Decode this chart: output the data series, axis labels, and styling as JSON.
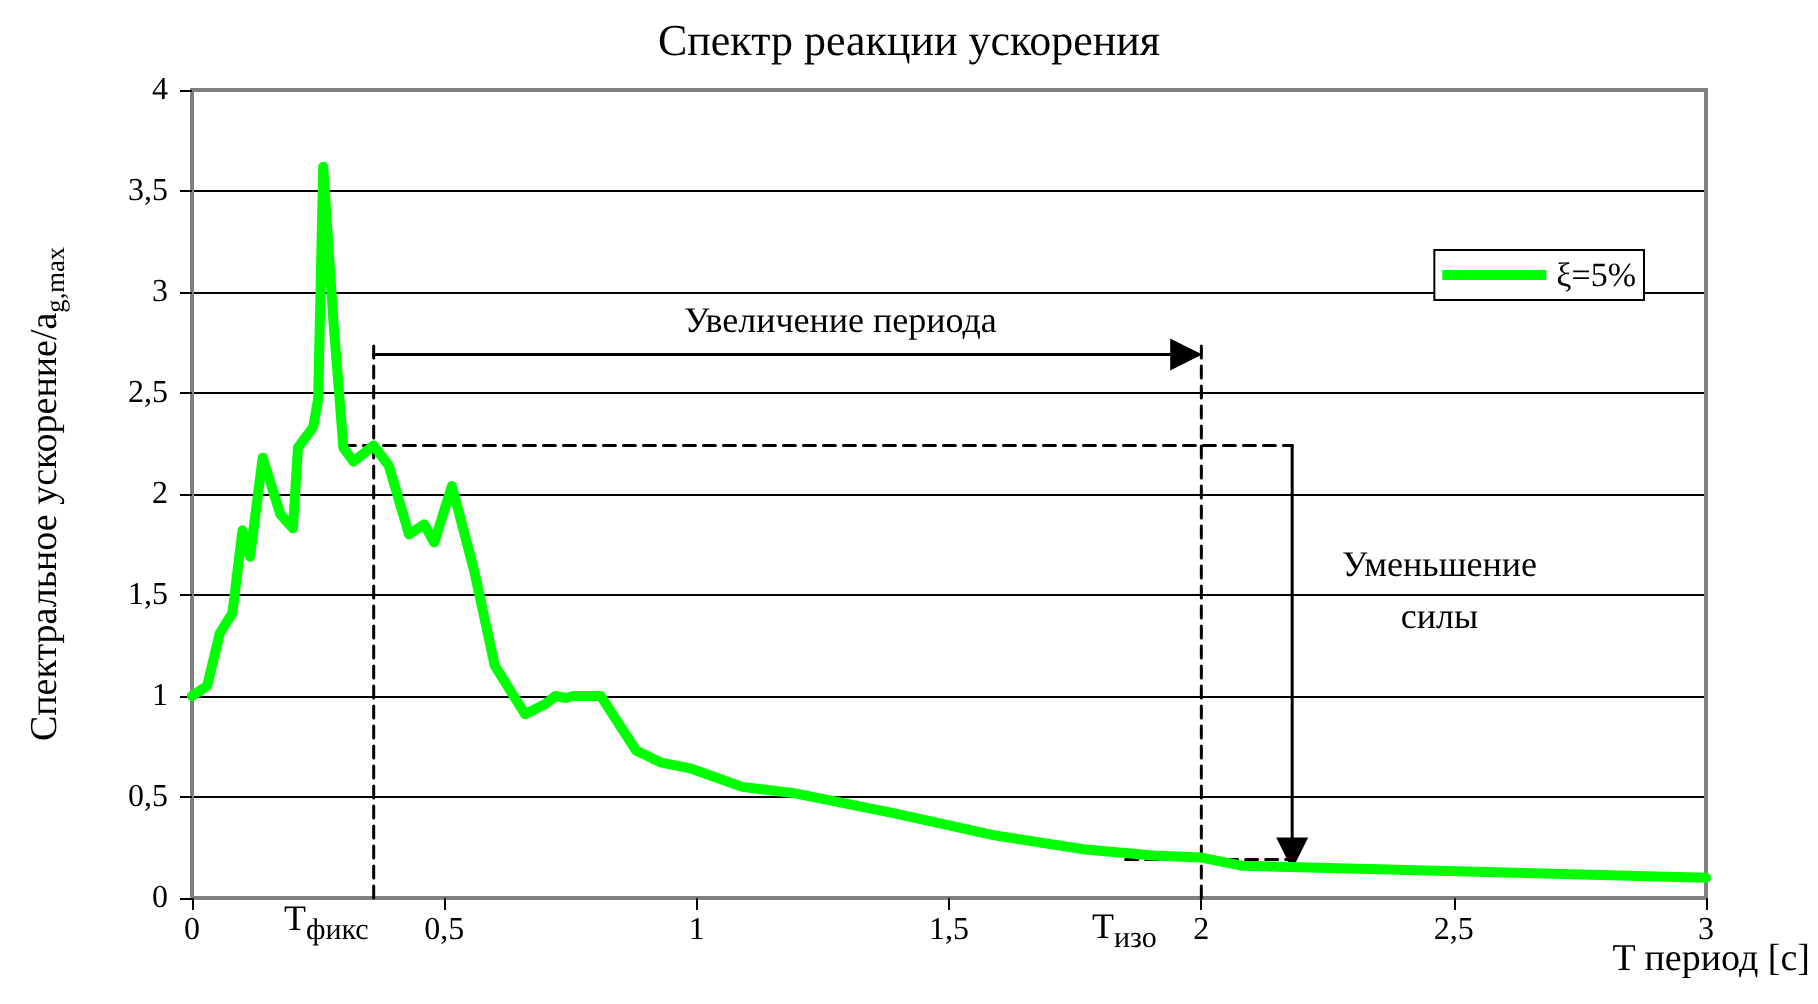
{
  "chart_data": {
    "type": "line",
    "title": "Спектр реакции ускорения",
    "xlabel": "T период [c]",
    "ylabel": "Спектральное ускорение/a$_{g,max}$",
    "series": [
      {
        "name": "ξ=5%",
        "color": "#00ff00",
        "x": [
          0,
          0.03,
          0.055,
          0.08,
          0.1,
          0.115,
          0.14,
          0.175,
          0.2,
          0.21,
          0.24,
          0.25,
          0.26,
          0.28,
          0.3,
          0.32,
          0.36,
          0.39,
          0.41,
          0.43,
          0.46,
          0.48,
          0.515,
          0.56,
          0.6,
          0.66,
          0.7,
          0.72,
          0.74,
          0.756,
          0.81,
          0.88,
          0.93,
          0.99,
          1.09,
          1.19,
          1.39,
          1.59,
          1.77,
          1.905,
          2.0,
          2.08,
          3.0
        ],
        "values": [
          1.0,
          1.05,
          1.31,
          1.41,
          1.82,
          1.69,
          2.18,
          1.9,
          1.83,
          2.23,
          2.33,
          2.47,
          3.62,
          2.86,
          2.23,
          2.16,
          2.24,
          2.14,
          1.97,
          1.8,
          1.85,
          1.76,
          2.04,
          1.61,
          1.15,
          0.91,
          0.96,
          1.0,
          0.99,
          1.0,
          1.0,
          0.73,
          0.67,
          0.64,
          0.55,
          0.52,
          0.42,
          0.31,
          0.24,
          0.21,
          0.2,
          0.16,
          0.1
        ],
        "marker": "none",
        "line_style": "solid"
      },
      {
        "color": "#000000",
        "x": [
          0.36,
          0.36
        ],
        "values": [
          0,
          2.74
        ],
        "marker": "none",
        "line_style": "dashed"
      },
      {
        "color": "#000000",
        "x": [
          0.36,
          1.97
        ],
        "values": [
          2.69,
          2.69
        ],
        "marker": "triangle",
        "line_style": "solid"
      },
      {
        "color": "#000000",
        "x": [
          2.0,
          2.0
        ],
        "values": [
          0,
          2.75
        ],
        "marker": "none",
        "line_style": "dashed"
      },
      {
        "color": "#000000",
        "x": [
          0.3,
          2.18
        ],
        "values": [
          2.24,
          2.24
        ],
        "marker": "none",
        "line_style": "dashed"
      },
      {
        "color": "#000000",
        "x": [
          2.18,
          2.18
        ],
        "values": [
          2.24,
          0.22
        ],
        "marker": "triangle",
        "line_style": "solid"
      },
      {
        "color": "#000000",
        "x": [
          1.85,
          2.18
        ],
        "values": [
          0.19,
          0.19
        ],
        "marker": "none",
        "line_style": "dashed"
      }
    ],
    "annotations": [
      "Увеличение периода",
      "Уменьшение\nсилы",
      "T$_{фикс}$",
      "T$_{изо}$"
    ],
    "xlim": [
      0,
      3
    ],
    "xticks": [
      0,
      {
        "value": 0.5,
        "label": "0,5"
      },
      1,
      {
        "value": 1.5,
        "label": "1,5"
      },
      2,
      {
        "value": 2.5,
        "label": "2,5"
      },
      3
    ],
    "ylim": [
      0,
      4
    ],
    "yticks": [
      0,
      {
        "value": 0.5,
        "label": "0,5"
      },
      1,
      {
        "value": 1.5,
        "label": "1,5"
      },
      2,
      {
        "value": 2.5,
        "label": "2,5"
      },
      3,
      {
        "value": 3.5,
        "label": "3,5"
      },
      4
    ],
    "grid": "y",
    "legend": "top right"
  }
}
